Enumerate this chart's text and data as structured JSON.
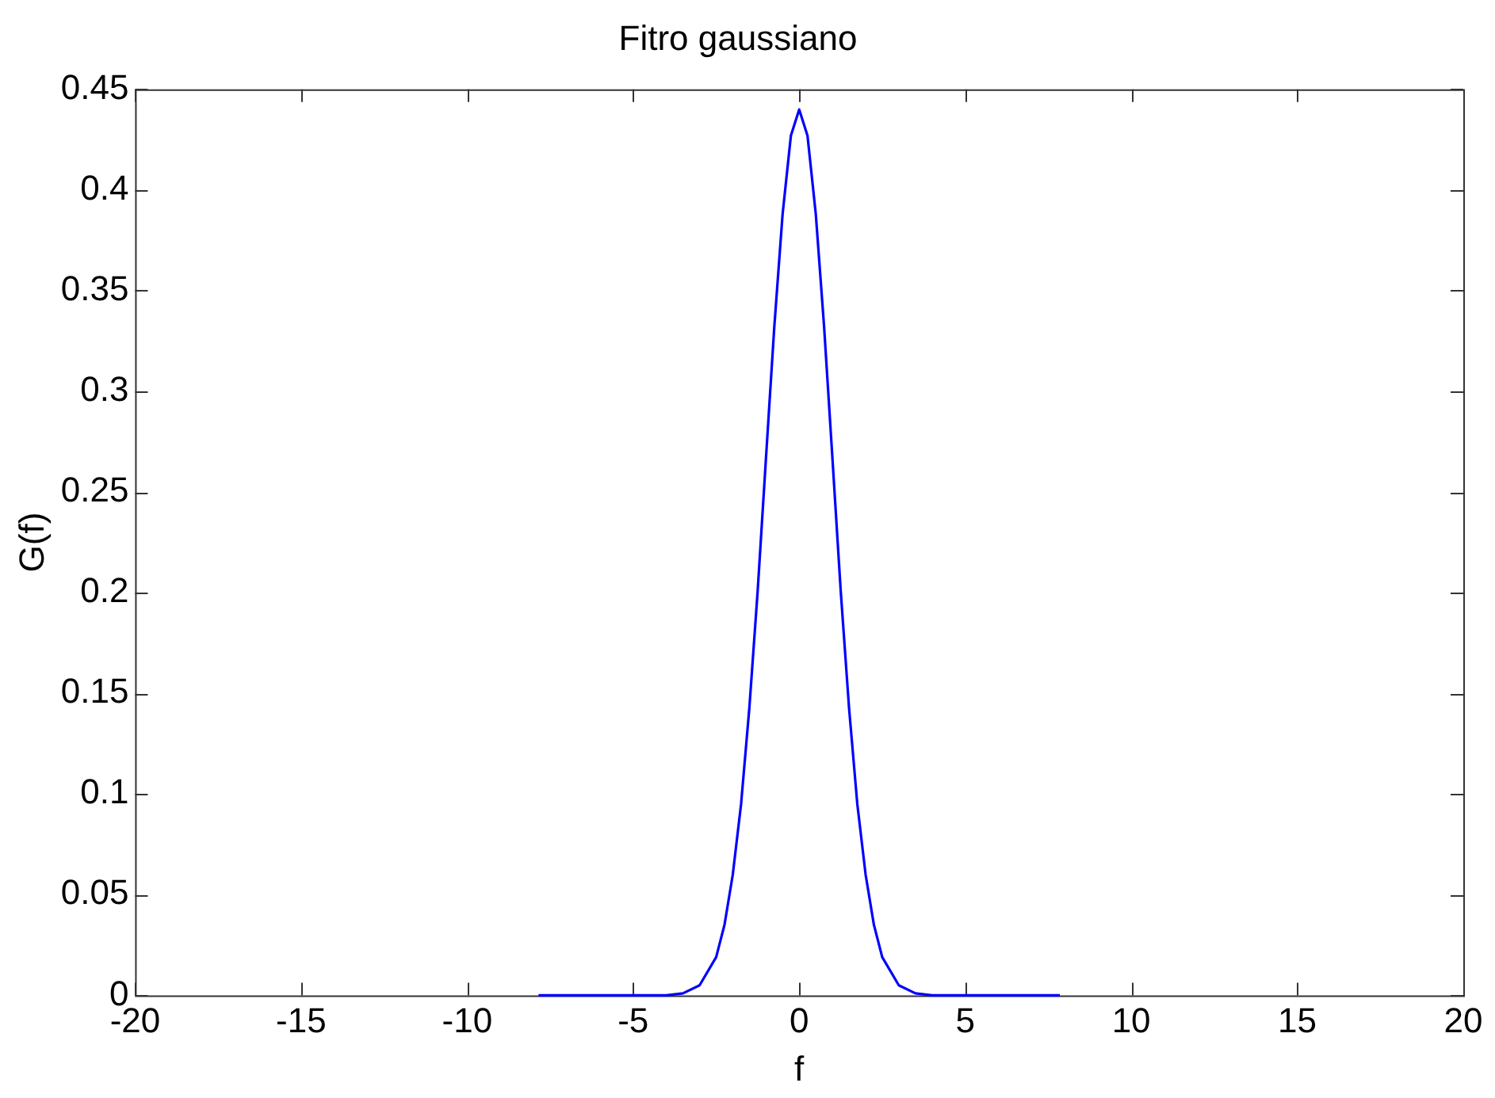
{
  "chart_data": {
    "type": "line",
    "title": "Fitro gaussiano",
    "xlabel": "f",
    "ylabel": "G(f)",
    "x": [
      -7.85,
      -4,
      -3.5,
      -3,
      -2.5,
      -2.25,
      -2,
      -1.75,
      -1.5,
      -1.25,
      -1,
      -0.75,
      -0.5,
      -0.25,
      0,
      0.25,
      0.5,
      0.75,
      1,
      1.25,
      1.5,
      1.75,
      2,
      2.25,
      2.5,
      3,
      3.5,
      4,
      7.85
    ],
    "series": [
      {
        "color": "#0000ff",
        "values": [
          0,
          0,
          0.001,
          0.005,
          0.019,
          0.035,
          0.06,
          0.095,
          0.143,
          0.201,
          0.267,
          0.332,
          0.388,
          0.427,
          0.44,
          0.427,
          0.388,
          0.332,
          0.267,
          0.201,
          0.143,
          0.095,
          0.06,
          0.035,
          0.019,
          0.005,
          0.001,
          0,
          0
        ]
      }
    ],
    "xlim": [
      -20,
      20
    ],
    "xticks": [
      -20,
      -15,
      -10,
      -5,
      0,
      5,
      10,
      15,
      20
    ],
    "ylim": [
      0,
      0.45
    ],
    "yticks": [
      0,
      0.05,
      0.1,
      0.15,
      0.2,
      0.25,
      0.3,
      0.35,
      0.4,
      0.45
    ],
    "grid": false,
    "legend": false,
    "marker": "none",
    "line_style": "solid"
  }
}
